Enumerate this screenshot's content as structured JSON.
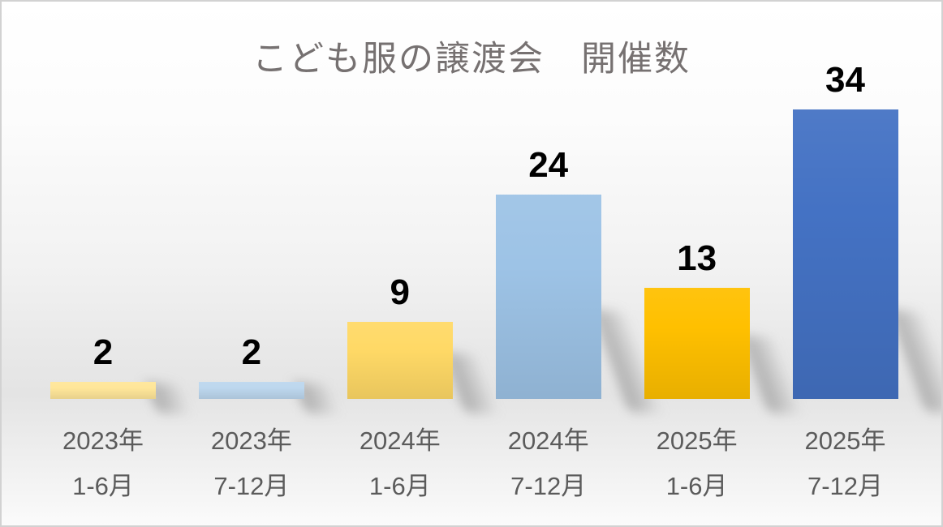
{
  "chart_data": {
    "type": "bar",
    "title": "こども服の譲渡会　開催数",
    "categories": [
      "2023年 1-6月",
      "2023年 7-12月",
      "2024年 1-6月",
      "2024年 7-12月",
      "2025年 1-6月",
      "2025年 7-12月"
    ],
    "category_lines": [
      {
        "line1": "2023年",
        "line2": "1-6月"
      },
      {
        "line1": "2023年",
        "line2": "7-12月"
      },
      {
        "line1": "2024年",
        "line2": "1-6月"
      },
      {
        "line1": "2024年",
        "line2": "7-12月"
      },
      {
        "line1": "2025年",
        "line2": "1-6月"
      },
      {
        "line1": "2025年",
        "line2": "7-12月"
      }
    ],
    "values": [
      2,
      2,
      9,
      24,
      13,
      34
    ],
    "data_labels": [
      "2",
      "2",
      "9",
      "24",
      "13",
      "34"
    ],
    "bar_colors": [
      "#FFE699",
      "#BDD7EE",
      "#FFD966",
      "#9DC3E6",
      "#FFC000",
      "#4472C4"
    ],
    "ylim": [
      0,
      34
    ],
    "xlabel": "",
    "ylabel": "",
    "axes_shown": false,
    "gridlines": false,
    "legend": "none",
    "title_color": "#767171",
    "category_label_color": "#5B5B5B",
    "value_label_color": "#000000",
    "background_style": "white-to-gray vertical gradient with floor shadows"
  }
}
